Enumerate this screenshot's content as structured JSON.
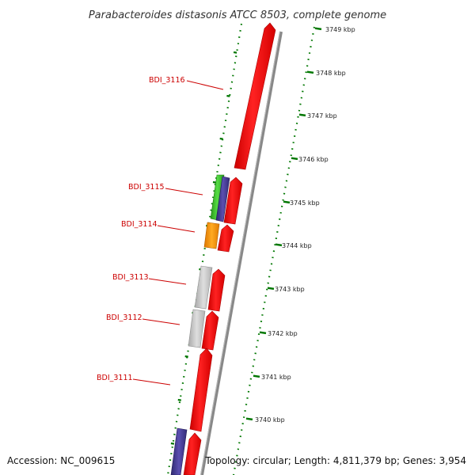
{
  "title": "Parabacteroides distasonis ATCC 8503, complete genome",
  "accession_text": "Accession: NC_009615",
  "summary_text": "Topology: circular; Length: 4,811,379 bp; Genes: 3,954",
  "genome": {
    "organism": "Parabacteroides distasonis ATCC 8503",
    "accession": "NC_009615",
    "topology": "circular",
    "length_bp": 4811379,
    "genes_count": 3954
  },
  "scale": {
    "unit": "kbp",
    "labeled_ticks": [
      {
        "kbp": 3749,
        "label": "3749 kbp"
      },
      {
        "kbp": 3748,
        "label": "3748 kbp"
      },
      {
        "kbp": 3747,
        "label": "3747 kbp"
      },
      {
        "kbp": 3746,
        "label": "3746 kbp"
      },
      {
        "kbp": 3745,
        "label": "3745 kbp"
      },
      {
        "kbp": 3744,
        "label": "3744 kbp"
      },
      {
        "kbp": 3743,
        "label": "3743 kbp"
      },
      {
        "kbp": 3742,
        "label": "3742 kbp"
      },
      {
        "kbp": 3741,
        "label": "3741 kbp"
      },
      {
        "kbp": 3740,
        "label": "3740 kbp"
      }
    ]
  },
  "gene_labels": [
    {
      "name": "BDI_3116"
    },
    {
      "name": "BDI_3115"
    },
    {
      "name": "BDI_3114"
    },
    {
      "name": "BDI_3113"
    },
    {
      "name": "BDI_3112"
    },
    {
      "name": "BDI_3111"
    }
  ],
  "colors": {
    "gene_red": "#ff1111",
    "gene_green": "#44cc33",
    "gene_purple": "#4a3f94",
    "gene_orange": "#ff9900",
    "gene_grey": "#c8c8c8",
    "backbone": "#888888",
    "tick_green": "#007700",
    "label_red": "#cc0000"
  }
}
